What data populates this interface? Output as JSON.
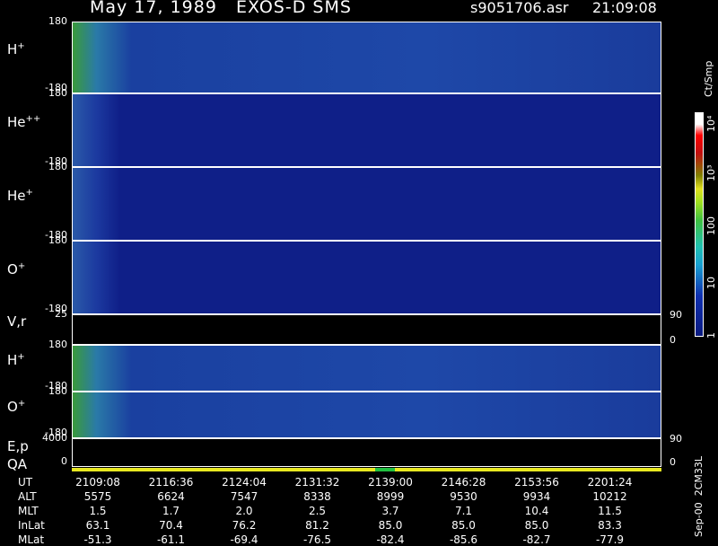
{
  "header": {
    "title": "May 17, 1989   EXOS-D SMS",
    "file": "s9051706.asr",
    "time": "21:09:08"
  },
  "panels": [
    {
      "label": "H",
      "sup": "+",
      "ticks_left": [
        "180",
        "-180"
      ]
    },
    {
      "label": "He",
      "sup": "++",
      "ticks_left": [
        "180",
        "-180"
      ]
    },
    {
      "label": "He",
      "sup": "+",
      "ticks_left": [
        "180",
        "-180"
      ]
    },
    {
      "label": "O",
      "sup": "+",
      "ticks_left": [
        "180",
        "-180"
      ]
    },
    {
      "label": "V,r",
      "ticks_left": [
        "25"
      ],
      "ticks_right": [
        "90",
        "0"
      ]
    },
    {
      "label": "H",
      "sup": "+",
      "ticks_left": [
        "180",
        "-180"
      ]
    },
    {
      "label": "O",
      "sup": "+",
      "ticks_left": [
        "180",
        "-180"
      ]
    },
    {
      "label": "E,p",
      "label2": "QA",
      "ticks_left": [
        "4000",
        "0"
      ],
      "ticks_right": [
        "90",
        "0"
      ]
    }
  ],
  "colorbar": {
    "unit": "Ct/Smp",
    "labels": [
      "10⁴",
      "10³",
      "100",
      "10",
      "1"
    ]
  },
  "footer_id": "Sep-00  2CM33L",
  "table": {
    "row_labels": [
      "UT",
      "ALT",
      "MLT",
      "InLat",
      "MLat"
    ],
    "rows": [
      [
        "2109:08",
        "2116:36",
        "2124:04",
        "2131:32",
        "2139:00",
        "2146:28",
        "2153:56",
        "2201:24"
      ],
      [
        "5575",
        "6624",
        "7547",
        "8338",
        "8999",
        "9530",
        "9934",
        "10212"
      ],
      [
        "1.5",
        "1.7",
        "2.0",
        "2.5",
        "3.7",
        "7.1",
        "10.4",
        "11.5"
      ],
      [
        "63.1",
        "70.4",
        "76.2",
        "81.2",
        "85.0",
        "85.0",
        "85.0",
        "83.3"
      ],
      [
        "-51.3",
        "-61.1",
        "-69.4",
        "-76.5",
        "-82.4",
        "-85.6",
        "-82.7",
        "-77.9"
      ]
    ]
  }
}
